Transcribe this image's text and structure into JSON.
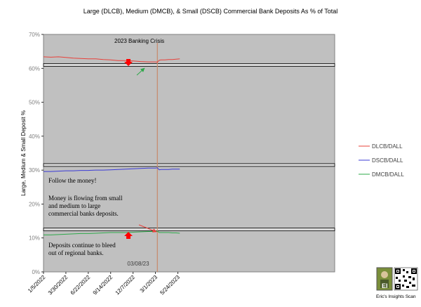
{
  "chart_data": {
    "type": "line",
    "title": "Large (DLCB), Medium (DMCB), & Small (DSCB) Commercial Bank Deposits As % of Total",
    "xlabel": "",
    "ylabel": "Large, Medium & Small Deposit %",
    "ylim": [
      0,
      70
    ],
    "yticks": [
      "0%",
      "10%",
      "20%",
      "30%",
      "40%",
      "50%",
      "60%",
      "70%"
    ],
    "ytick_values": [
      0,
      10,
      20,
      30,
      40,
      50,
      60,
      70
    ],
    "xlim": [
      "2022-01-05",
      "2025-01-01"
    ],
    "xticks": [
      "1/5/2022",
      "3/30/2022",
      "6/22/2022",
      "9/14/2022",
      "12/7/2022",
      "3/1/2023",
      "5/24/2023"
    ],
    "xtick_dates": [
      "2022-01-05",
      "2022-03-30",
      "2022-06-22",
      "2022-09-14",
      "2022-12-07",
      "2023-03-01",
      "2023-05-24"
    ],
    "grid": false,
    "legend_position": "right",
    "plot_background": "#c0c0c0",
    "series": [
      {
        "name": "DLCB/DALL",
        "color": "#e8413a",
        "x": [
          "2022-01-05",
          "2022-02-02",
          "2022-03-02",
          "2022-03-30",
          "2022-04-27",
          "2022-05-25",
          "2022-06-22",
          "2022-07-20",
          "2022-08-17",
          "2022-09-14",
          "2022-10-12",
          "2022-11-09",
          "2022-12-07",
          "2023-01-04",
          "2023-02-01",
          "2023-02-22",
          "2023-03-01",
          "2023-03-08",
          "2023-03-15",
          "2023-03-22",
          "2023-04-05",
          "2023-04-19",
          "2023-05-03",
          "2023-05-17",
          "2023-05-31"
        ],
        "y": [
          63.4,
          63.3,
          63.4,
          63.2,
          63.0,
          62.9,
          62.8,
          62.8,
          62.6,
          62.5,
          62.3,
          62.3,
          62.2,
          62.0,
          61.9,
          61.9,
          61.9,
          61.8,
          62.4,
          62.5,
          62.5,
          62.6,
          62.6,
          62.7,
          62.8
        ]
      },
      {
        "name": "DSCB/DALL",
        "color": "#3b3bd6",
        "x": [
          "2022-01-05",
          "2022-02-02",
          "2022-03-02",
          "2022-03-30",
          "2022-04-27",
          "2022-05-25",
          "2022-06-22",
          "2022-07-20",
          "2022-08-17",
          "2022-09-14",
          "2022-10-12",
          "2022-11-09",
          "2022-12-07",
          "2023-01-04",
          "2023-02-01",
          "2023-02-22",
          "2023-03-01",
          "2023-03-08",
          "2023-03-15",
          "2023-03-22",
          "2023-04-05",
          "2023-04-19",
          "2023-05-03",
          "2023-05-17",
          "2023-05-31"
        ],
        "y": [
          29.6,
          29.6,
          29.7,
          29.8,
          29.8,
          29.9,
          29.9,
          30.0,
          30.0,
          30.1,
          30.2,
          30.3,
          30.4,
          30.5,
          30.6,
          30.6,
          30.6,
          30.7,
          30.1,
          30.2,
          30.2,
          30.2,
          30.3,
          30.3,
          30.3
        ]
      },
      {
        "name": "DMCB/DALL",
        "color": "#2ea84a",
        "x": [
          "2022-01-05",
          "2022-02-02",
          "2022-03-02",
          "2022-03-30",
          "2022-04-27",
          "2022-05-25",
          "2022-06-22",
          "2022-07-20",
          "2022-08-17",
          "2022-09-14",
          "2022-10-12",
          "2022-11-09",
          "2022-12-07",
          "2023-01-04",
          "2023-02-01",
          "2023-02-22",
          "2023-03-01",
          "2023-03-08",
          "2023-03-15",
          "2023-03-22",
          "2023-04-05",
          "2023-04-19",
          "2023-05-03",
          "2023-05-17",
          "2023-05-31"
        ],
        "y": [
          10.9,
          10.9,
          11.0,
          11.1,
          11.2,
          11.3,
          11.3,
          11.4,
          11.5,
          11.6,
          11.6,
          11.6,
          11.7,
          11.8,
          11.9,
          11.9,
          11.9,
          12.0,
          11.6,
          11.6,
          11.6,
          11.6,
          11.5,
          11.5,
          11.4
        ]
      }
    ],
    "event_marker": {
      "date": "2023-03-08",
      "label": "03/08/23"
    },
    "reference_bands": [
      61,
      31.5,
      12.5
    ],
    "annotations": {
      "crisis_label": "2023 Banking Crisis",
      "follow_the_money": "Follow the money!",
      "flow_text": [
        "Money is flowing from small",
        "and medium  to large",
        "commercial banks deposits."
      ],
      "regional_text": [
        "Deposits continue to bleed",
        "out of regional banks."
      ]
    }
  },
  "logo": {
    "initials": "EI",
    "caption": "Eric's Insights  Scan"
  }
}
